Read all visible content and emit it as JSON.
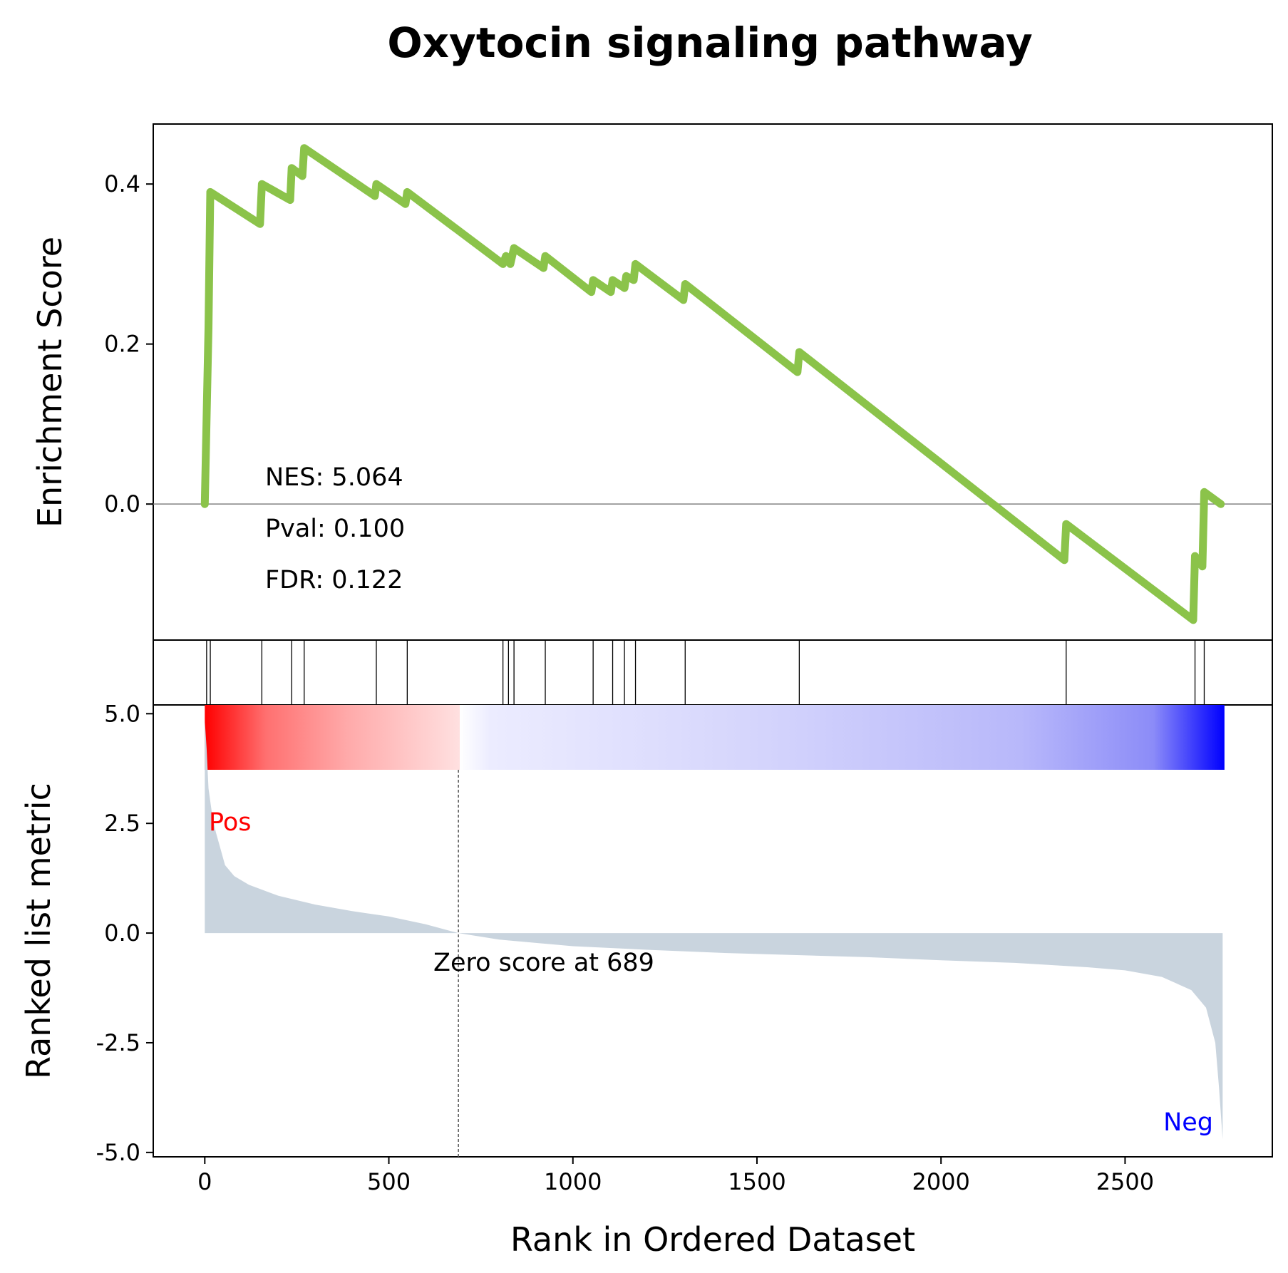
{
  "chart_data": {
    "type": "line",
    "title": "Oxytocin signaling pathway",
    "xlabel": "Rank in Ordered Dataset",
    "xlim": [
      -140,
      2900
    ],
    "x_ticks": [
      0,
      500,
      1000,
      1500,
      2000,
      2500
    ],
    "n_genes": 2770,
    "grid": false,
    "enrichment_panel": {
      "ylabel": "Enrichment Score",
      "ylim": [
        -0.17,
        0.475
      ],
      "y_ticks": [
        0.0,
        0.2,
        0.4
      ],
      "y_tick_labels": [
        "0.0",
        "0.2",
        "0.4"
      ],
      "line_color": "#8bc34a",
      "running_es": [
        [
          0,
          0.0
        ],
        [
          10,
          0.22
        ],
        [
          15,
          0.39
        ],
        [
          150,
          0.35
        ],
        [
          155,
          0.4
        ],
        [
          232,
          0.38
        ],
        [
          236,
          0.42
        ],
        [
          265,
          0.41
        ],
        [
          270,
          0.445
        ],
        [
          462,
          0.385
        ],
        [
          466,
          0.4
        ],
        [
          545,
          0.375
        ],
        [
          550,
          0.39
        ],
        [
          810,
          0.3
        ],
        [
          818,
          0.31
        ],
        [
          830,
          0.3
        ],
        [
          840,
          0.32
        ],
        [
          920,
          0.295
        ],
        [
          925,
          0.31
        ],
        [
          1050,
          0.265
        ],
        [
          1055,
          0.28
        ],
        [
          1103,
          0.265
        ],
        [
          1108,
          0.28
        ],
        [
          1140,
          0.27
        ],
        [
          1145,
          0.285
        ],
        [
          1165,
          0.28
        ],
        [
          1170,
          0.3
        ],
        [
          1300,
          0.255
        ],
        [
          1305,
          0.275
        ],
        [
          1610,
          0.165
        ],
        [
          1615,
          0.19
        ],
        [
          2335,
          -0.07
        ],
        [
          2340,
          -0.025
        ],
        [
          2685,
          -0.145
        ],
        [
          2690,
          -0.065
        ],
        [
          2710,
          -0.078
        ],
        [
          2715,
          0.015
        ],
        [
          2760,
          0.0
        ]
      ],
      "annotations": {
        "nes": "NES: 5.064",
        "pval": "Pval: 0.100",
        "fdr": "FDR: 0.122"
      }
    },
    "hits": [
      5,
      15,
      155,
      236,
      270,
      466,
      550,
      810,
      825,
      840,
      925,
      1055,
      1108,
      1140,
      1170,
      1305,
      1615,
      2340,
      2690,
      2715
    ],
    "ranked_panel": {
      "ylabel": "Ranked list metric",
      "ylim": [
        -5.1,
        5.2
      ],
      "y_ticks": [
        5.0,
        2.5,
        0.0,
        -2.5,
        -5.0
      ],
      "y_tick_labels": [
        "5.0",
        "2.5",
        "0.0",
        "-2.5",
        "-5.0"
      ],
      "fill_color": "#c9d4de",
      "metric_curve": [
        [
          0,
          4.85
        ],
        [
          5,
          4.2
        ],
        [
          10,
          3.3
        ],
        [
          20,
          2.7
        ],
        [
          30,
          2.3
        ],
        [
          40,
          2.0
        ],
        [
          55,
          1.55
        ],
        [
          80,
          1.3
        ],
        [
          120,
          1.1
        ],
        [
          200,
          0.85
        ],
        [
          300,
          0.65
        ],
        [
          400,
          0.5
        ],
        [
          500,
          0.38
        ],
        [
          600,
          0.2
        ],
        [
          689,
          0.0
        ],
        [
          800,
          -0.15
        ],
        [
          1000,
          -0.3
        ],
        [
          1200,
          -0.38
        ],
        [
          1400,
          -0.45
        ],
        [
          1600,
          -0.5
        ],
        [
          1800,
          -0.55
        ],
        [
          2000,
          -0.62
        ],
        [
          2200,
          -0.68
        ],
        [
          2400,
          -0.78
        ],
        [
          2500,
          -0.85
        ],
        [
          2600,
          -1.0
        ],
        [
          2680,
          -1.3
        ],
        [
          2720,
          -1.7
        ],
        [
          2745,
          -2.5
        ],
        [
          2755,
          -3.5
        ],
        [
          2765,
          -4.7
        ]
      ],
      "zero_cross": 689,
      "zero_label": "Zero score at 689",
      "pos_label": "Pos",
      "neg_label": "Neg",
      "pos_color": "#ff0000",
      "neg_color": "#0000ff"
    }
  }
}
